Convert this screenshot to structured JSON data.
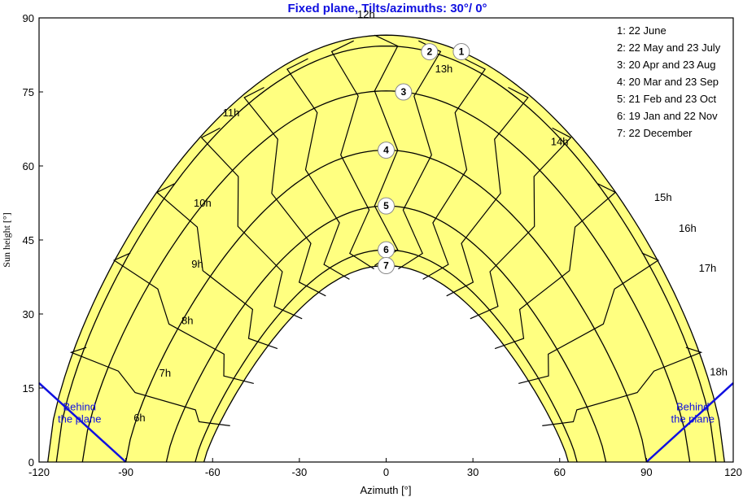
{
  "colors": {
    "fill": "#FFFF80",
    "title": "#1010E0",
    "horizon": "#1010E0",
    "curve": "#000000"
  },
  "chart_data": {
    "type": "line",
    "title": "Fixed plane, Tilts/azimuths: 30°/ 0°",
    "xlabel": "Azimuth [°]",
    "ylabel": "Sun height [°]",
    "xlim": [
      -120,
      120
    ],
    "ylim": [
      0,
      90
    ],
    "xticks": [
      -120,
      -90,
      -60,
      -30,
      0,
      30,
      60,
      90,
      120
    ],
    "yticks": [
      0,
      15,
      30,
      45,
      60,
      75,
      90
    ],
    "grid": false,
    "legend_position": "top-right",
    "series": [
      {
        "name": "22 June",
        "badge": "1",
        "legend": "1: 22 June",
        "maxh": 86.5,
        "maxaz": 117
      },
      {
        "name": "22 May and 23 July",
        "badge": "2",
        "legend": "2: 22 May and 23 July",
        "maxh": 84.3,
        "maxaz": 114
      },
      {
        "name": "20 Apr and 23 Aug",
        "badge": "3",
        "legend": "3: 20 Apr and 23 Aug",
        "maxh": 75.2,
        "maxaz": 105
      },
      {
        "name": "20 Mar and 23 Sep",
        "badge": "4",
        "legend": "4: 20 Mar and 23 Sep",
        "maxh": 63.2,
        "maxaz": 90
      },
      {
        "name": "21 Feb and 23 Oct",
        "badge": "5",
        "legend": "5: 21 Feb and 23 Oct",
        "maxh": 51.9,
        "maxaz": 76
      },
      {
        "name": "19 Jan and 22 Nov",
        "badge": "6",
        "legend": "6: 19 Jan and 22 Nov",
        "maxh": 43.0,
        "maxaz": 66
      },
      {
        "name": "22 December",
        "badge": "7",
        "legend": "7: 22 December",
        "maxh": 39.8,
        "maxaz": 63
      }
    ],
    "hour_labels": [
      {
        "text": "6h",
        "az": -113.5,
        "h": 21.0
      },
      {
        "text": "7h",
        "az": -102.0,
        "h": 44.0
      },
      {
        "text": "8h",
        "az": -92.0,
        "h": 71.0
      },
      {
        "text": "9h",
        "az": -87.5,
        "h": 100.0
      },
      {
        "text": "10h",
        "az": -86.5,
        "h": 131.5
      },
      {
        "text": "11h",
        "az": -73.5,
        "h": 178.0
      },
      {
        "text": "12h",
        "az": -13.0,
        "h": 228.5
      },
      {
        "text": "13h",
        "az": 22.0,
        "h": 200.5
      },
      {
        "text": "14h",
        "az": 74.0,
        "h": 163.0
      },
      {
        "text": "15h",
        "az": 120.5,
        "h": 134.5
      },
      {
        "text": "16h",
        "az": 131.5,
        "h": 118.5
      },
      {
        "text": "17h",
        "az": 140.5,
        "h": 98.0
      },
      {
        "text": "18h",
        "az": 145.5,
        "h": 44.5
      }
    ],
    "behind_label": "Behind\nthe plane"
  }
}
